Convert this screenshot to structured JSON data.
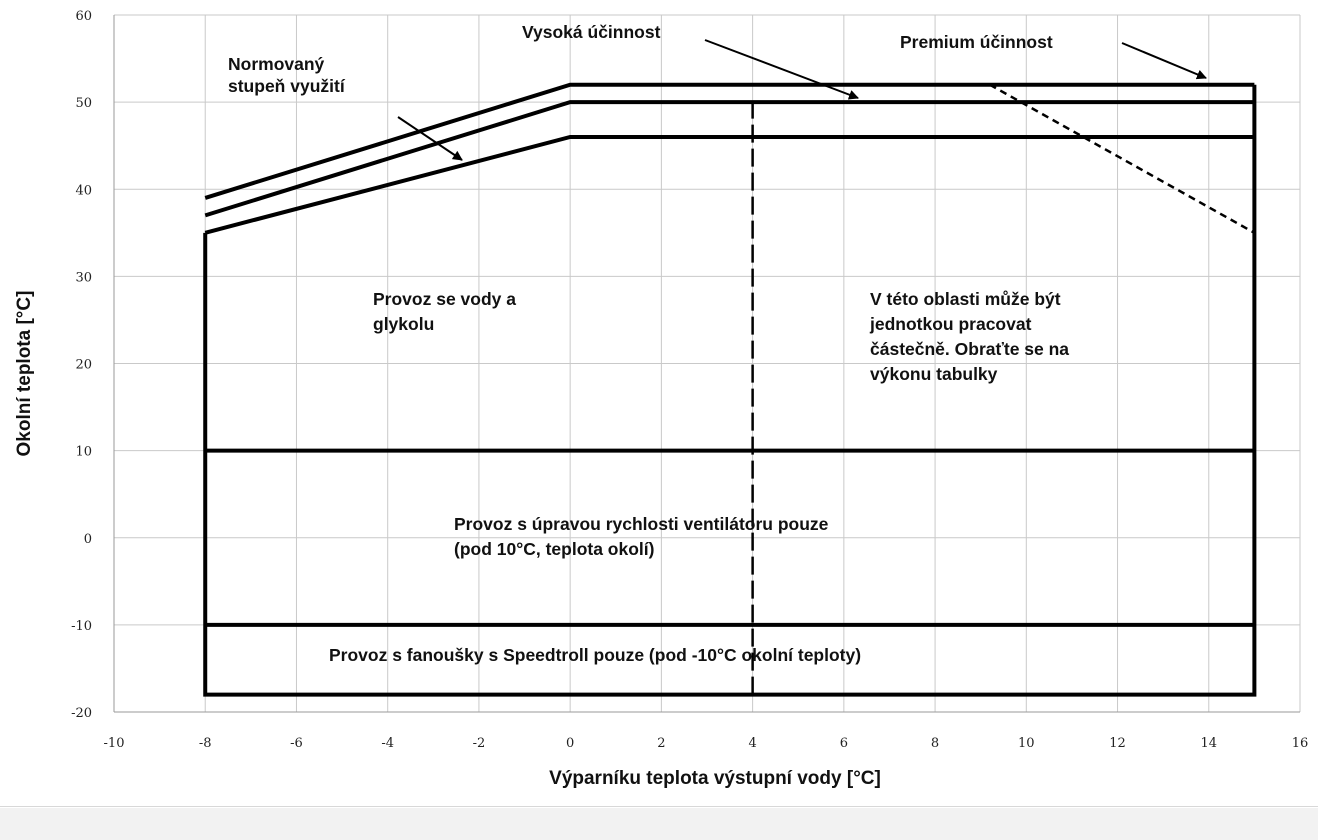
{
  "chart_data": {
    "type": "line",
    "xlabel": "Výparníku teplota výstupní vody [°C]",
    "ylabel": "Okolní teplota [°C]",
    "xlim": [
      -10,
      16
    ],
    "ylim": [
      -20,
      60
    ],
    "x_ticks": [
      -10,
      -8,
      -6,
      -4,
      -2,
      0,
      2,
      4,
      6,
      8,
      10,
      12,
      14,
      16
    ],
    "y_ticks": [
      -20,
      -10,
      0,
      10,
      20,
      30,
      40,
      50,
      60
    ],
    "grid": true,
    "series": [
      {
        "name": "Premium účinnost",
        "style": "solid",
        "x": [
          -8,
          0,
          15
        ],
        "y": [
          39,
          52,
          52
        ]
      },
      {
        "name": "Vysoká účinnost",
        "style": "solid",
        "x": [
          -8,
          0,
          15
        ],
        "y": [
          37,
          50,
          50
        ]
      },
      {
        "name": "Normovaný stupeň využití",
        "style": "solid",
        "x": [
          -8,
          0,
          15
        ],
        "y": [
          35,
          46,
          46
        ]
      },
      {
        "style": "solid",
        "x": [
          -8,
          -8,
          15,
          15
        ],
        "y": [
          35,
          -18,
          -18,
          52
        ]
      },
      {
        "style": "solid",
        "x": [
          -8,
          15
        ],
        "y": [
          10,
          10
        ]
      },
      {
        "style": "solid",
        "x": [
          -8,
          15
        ],
        "y": [
          -10,
          -10
        ]
      },
      {
        "style": "dashed",
        "x": [
          4,
          4
        ],
        "y": [
          -18,
          50
        ]
      },
      {
        "style": "dotted",
        "x": [
          9.2,
          15
        ],
        "y": [
          52,
          35
        ]
      }
    ],
    "annotations": [
      {
        "id": "norm",
        "lines": [
          "Normovaný",
          "stupeň využití"
        ]
      },
      {
        "id": "vysoka",
        "lines": [
          "Vysoká účinnost"
        ]
      },
      {
        "id": "premium",
        "lines": [
          "Premium účinnost"
        ]
      },
      {
        "id": "glykol",
        "lines": [
          "Provoz se vody a",
          "glykolu"
        ]
      },
      {
        "id": "oblast",
        "lines": [
          "V této oblasti může být",
          "jednotkou pracovat",
          "částečně. Obraťte se na",
          "výkonu tabulky"
        ]
      },
      {
        "id": "ventilator",
        "lines": [
          "Provoz s úpravou rychlosti ventilátoru pouze",
          "(pod 10°C, teplota okolí)"
        ]
      },
      {
        "id": "speedtroll",
        "lines": [
          "Provoz s fanoušky s Speedtroll pouze (pod -10°C okolní teploty)"
        ]
      }
    ]
  }
}
